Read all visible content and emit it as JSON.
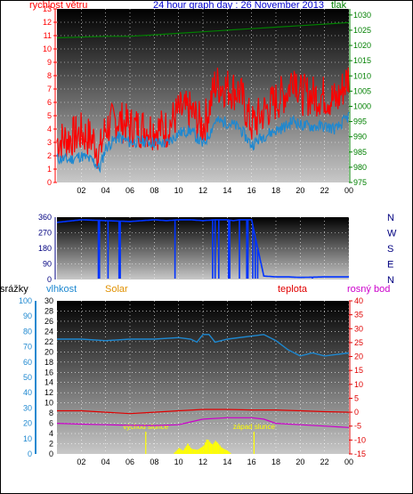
{
  "header": {
    "left_label": "rychlost větru",
    "title": "24 hour graph day : 26 November 2013",
    "right_label": "tlak"
  },
  "panel3_labels": {
    "rain": "srážky",
    "humidity": "vlhkost",
    "solar": "Solar",
    "temp": "teplota",
    "dew": "rosný bod"
  },
  "colors": {
    "wind_gust": "#ff0000",
    "wind_avg": "#1e88d0",
    "pressure": "#008000",
    "direction": "#0033ff",
    "humidity": "#1e88d0",
    "temp": "#e00000",
    "dew": "#cc00cc",
    "solar": "#ffff00",
    "sun_lines": "#ffff00"
  },
  "x_ticks": [
    "02",
    "04",
    "06",
    "08",
    "10",
    "12",
    "14",
    "16",
    "18",
    "20",
    "22",
    "00"
  ],
  "chart_data": [
    {
      "type": "line",
      "panel": "wind_pressure",
      "x_range": [
        0,
        24
      ],
      "y_left": {
        "label": "rychlost větru",
        "ticks": [
          0,
          1,
          2,
          3,
          4,
          5,
          6,
          7,
          8,
          9,
          10,
          11,
          12,
          13
        ],
        "range": [
          0,
          13
        ]
      },
      "y_right": {
        "label": "tlak",
        "ticks": [
          975,
          980,
          985,
          990,
          995,
          1000,
          1005,
          1010,
          1015,
          1020,
          1025,
          1030
        ],
        "range": [
          975,
          1032
        ]
      },
      "series": [
        {
          "name": "rychlost větru",
          "axis": "left",
          "x": [
            0,
            1,
            2,
            3,
            3.5,
            4,
            5,
            6,
            7,
            8,
            9,
            10,
            11,
            12,
            12.5,
            13,
            14,
            15,
            16,
            17,
            18,
            19,
            19.5,
            20,
            21,
            22,
            23,
            24
          ],
          "values": [
            3.1,
            3.3,
            3.7,
            3.2,
            2.2,
            4.1,
            4.7,
            4.2,
            4.1,
            4.0,
            4.0,
            5.3,
            5.3,
            4.2,
            5.5,
            7.4,
            7.1,
            6.8,
            4.3,
            5.3,
            6.1,
            6.9,
            8.4,
            6.6,
            6.5,
            6.5,
            6.1,
            8.0
          ]
        },
        {
          "name": "",
          "axis": "left",
          "x": [
            0,
            1,
            2,
            3,
            3.5,
            4,
            5,
            6,
            7,
            8,
            9,
            10,
            11,
            12,
            12.5,
            13,
            14,
            15,
            16,
            17,
            18,
            19,
            19.5,
            20,
            21,
            22,
            23,
            24
          ],
          "values": [
            1.8,
            1.7,
            2.0,
            1.6,
            1.0,
            2.6,
            3.4,
            3.0,
            3.1,
            3.0,
            2.9,
            3.7,
            3.9,
            2.8,
            3.6,
            4.6,
            4.5,
            4.1,
            2.8,
            3.5,
            3.9,
            4.3,
            4.7,
            4.3,
            4.2,
            4.2,
            4.0,
            5.0
          ]
        },
        {
          "name": "tlak",
          "axis": "right",
          "x": [
            0,
            4,
            6,
            8,
            10,
            12,
            14,
            16,
            18,
            20,
            22,
            24
          ],
          "values": [
            1022.5,
            1023,
            1023,
            1023.5,
            1024,
            1024.5,
            1025,
            1025.5,
            1026,
            1026.5,
            1027,
            1027.5
          ]
        }
      ]
    },
    {
      "type": "line",
      "panel": "wind_direction",
      "x_range": [
        0,
        24
      ],
      "y_left": {
        "ticks": [
          0,
          90,
          180,
          270,
          360
        ],
        "range": [
          0,
          360
        ]
      },
      "y_right": {
        "ticks": [
          "N",
          "W",
          "S",
          "E",
          "N"
        ]
      },
      "series": [
        {
          "name": "",
          "x": [
            0,
            2,
            4,
            6,
            8,
            9,
            10,
            11,
            12,
            13,
            14,
            14.5,
            15,
            15.5,
            16,
            17,
            18,
            19,
            20,
            22,
            24
          ],
          "values": [
            330,
            345,
            340,
            335,
            345,
            340,
            345,
            345,
            340,
            345,
            345,
            340,
            345,
            345,
            345,
            20,
            15,
            15,
            12,
            15,
            15
          ]
        }
      ]
    },
    {
      "type": "line",
      "panel": "temp_humidity",
      "x_range": [
        0,
        24
      ],
      "y_rain": {
        "label": "srážky",
        "ticks": [
          0,
          10,
          20,
          30,
          40,
          50,
          60,
          70,
          80,
          90,
          100
        ],
        "range": [
          0,
          100
        ]
      },
      "y_humidity": {
        "label": "vlhkost",
        "ticks": [
          0,
          2,
          4,
          6,
          8,
          10,
          12,
          14,
          16,
          18,
          20,
          22,
          24,
          26,
          28,
          30
        ],
        "range": [
          0,
          30
        ]
      },
      "y_temp": {
        "label": "teplota",
        "ticks": [
          -15,
          -10,
          -5,
          0,
          5,
          10,
          15,
          20,
          25,
          30,
          35,
          40
        ],
        "range": [
          -15,
          40
        ]
      },
      "annotations": [
        "východ slunce",
        "západ slunce"
      ],
      "sunrise_x": 7.3,
      "sunset_x": 16.2,
      "series": [
        {
          "name": "vlhkost",
          "scale": "rain",
          "x": [
            0,
            2,
            4,
            6,
            8,
            10,
            11,
            11.5,
            12,
            12.5,
            13,
            14,
            16,
            17,
            18,
            19,
            20,
            21,
            22,
            23,
            24
          ],
          "values": [
            75,
            75,
            74,
            75,
            75,
            76,
            75,
            73,
            78,
            78,
            73,
            75,
            77,
            78,
            74,
            68,
            64,
            66,
            64,
            65,
            66
          ]
        },
        {
          "name": "teplota",
          "scale": "temp",
          "x": [
            0,
            2,
            4,
            6,
            8,
            10,
            12,
            14,
            16,
            18,
            20,
            22,
            24
          ],
          "values": [
            0.5,
            0.5,
            0,
            -0.5,
            0,
            0.5,
            1,
            1,
            0.8,
            0.8,
            0.5,
            0.2,
            0
          ]
        },
        {
          "name": "rosný bod",
          "scale": "temp",
          "x": [
            0,
            2,
            4,
            6,
            8,
            10,
            11,
            12,
            14,
            16,
            17,
            18,
            20,
            22,
            24
          ],
          "values": [
            -4,
            -4.3,
            -4.5,
            -4.7,
            -4.8,
            -4.5,
            -3.5,
            -2.5,
            -2,
            -2,
            -2.5,
            -4,
            -4.5,
            -5,
            -5.5
          ]
        },
        {
          "name": "Solar",
          "scale": "humidity",
          "x": [
            9.5,
            10,
            10.3,
            10.7,
            11,
            11.5,
            12,
            12.3,
            12.7,
            13,
            13.5,
            14,
            14.3
          ],
          "values": [
            0,
            1.2,
            0.6,
            2.0,
            1.0,
            0.8,
            1.6,
            3.0,
            1.8,
            2.6,
            1.2,
            0.6,
            0
          ]
        }
      ]
    }
  ]
}
